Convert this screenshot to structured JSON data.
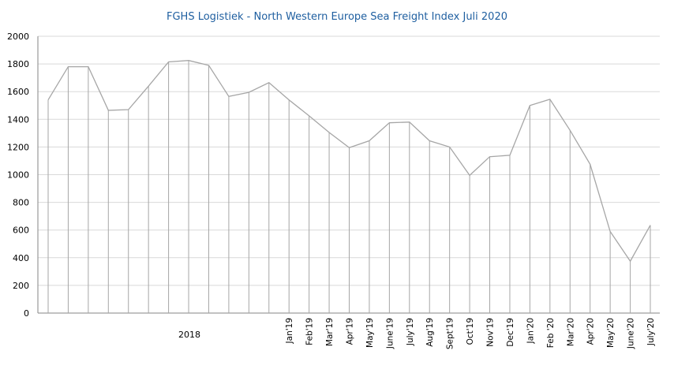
{
  "chart_data": {
    "type": "line",
    "title": "FGHS Logistiek - North  Western Europe Sea Freight Index Juli 2020",
    "xlabel": "",
    "ylabel": "",
    "ylim": [
      0,
      2000
    ],
    "yticks": [
      0,
      200,
      400,
      600,
      800,
      1000,
      1200,
      1400,
      1600,
      1800,
      2000
    ],
    "grid": true,
    "group_label": "2018",
    "categories": [
      "",
      "",
      "",
      "",
      "",
      "",
      "",
      "",
      "",
      "",
      "",
      "",
      "Jan'19",
      "Feb'19",
      "Mar'19",
      "Apr'19",
      "May'19",
      "June'19",
      "July'19",
      "Aug'19",
      "Sept'19",
      "Oct'19",
      "Nov'19",
      "Dec'19",
      "Jan'20",
      "Feb '20",
      "Mar'20",
      "Apr'20",
      "May'20",
      "June'20",
      "July'20"
    ],
    "values": [
      1540,
      1780,
      1780,
      1465,
      1470,
      1640,
      1815,
      1825,
      1790,
      1565,
      1595,
      1665,
      1540,
      1425,
      1305,
      1195,
      1245,
      1375,
      1380,
      1245,
      1200,
      995,
      1130,
      1140,
      1500,
      1545,
      1320,
      1075,
      590,
      375,
      635
    ],
    "colors": {
      "line": "#a6a6a6",
      "grid": "#d9d9d9",
      "title": "#1f5fa0",
      "axis": "#868686"
    }
  }
}
